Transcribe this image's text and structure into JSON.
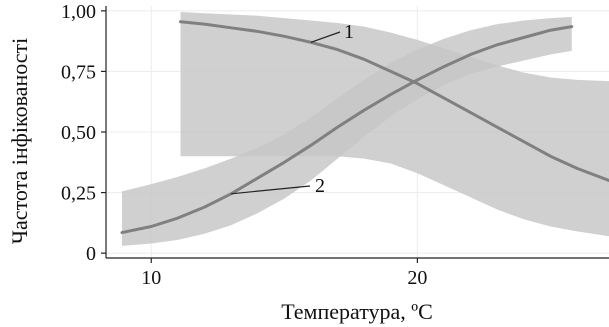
{
  "chart_data": {
    "type": "line",
    "xlabel": "Температура, ºС",
    "ylabel": "Частота інфікованості",
    "xlim": [
      8.3,
      27.2
    ],
    "ylim": [
      -0.02,
      1.02
    ],
    "x_ticks": [
      {
        "value": 10,
        "label": "10"
      },
      {
        "value": 20,
        "label": "20"
      }
    ],
    "y_ticks": [
      {
        "value": 0,
        "label": "0"
      },
      {
        "value": 0.25,
        "label": "0,25"
      },
      {
        "value": 0.5,
        "label": "0,50"
      },
      {
        "value": 0.75,
        "label": "0,75"
      },
      {
        "value": 1.0,
        "label": "1,00"
      }
    ],
    "grid": true,
    "legend": "none",
    "series": [
      {
        "label": "1",
        "x": [
          11.1,
          12,
          13,
          14,
          15,
          16,
          17,
          18,
          19,
          20,
          21,
          22,
          23,
          24,
          25,
          26,
          27.2
        ],
        "y": [
          0.955,
          0.945,
          0.93,
          0.915,
          0.895,
          0.87,
          0.84,
          0.8,
          0.75,
          0.7,
          0.64,
          0.58,
          0.52,
          0.46,
          0.4,
          0.35,
          0.3
        ],
        "lower": [
          0.4,
          0.4,
          0.4,
          0.4,
          0.4,
          0.4,
          0.4,
          0.39,
          0.37,
          0.33,
          0.28,
          0.23,
          0.18,
          0.14,
          0.11,
          0.09,
          0.07
        ],
        "upper": [
          0.995,
          0.99,
          0.985,
          0.98,
          0.97,
          0.96,
          0.95,
          0.935,
          0.91,
          0.88,
          0.845,
          0.81,
          0.775,
          0.745,
          0.725,
          0.715,
          0.71
        ]
      },
      {
        "label": "2",
        "x": [
          8.9,
          10,
          11,
          12,
          13,
          14,
          15,
          16,
          17,
          18,
          19,
          20,
          21,
          22,
          23,
          24,
          25,
          25.8
        ],
        "y": [
          0.085,
          0.11,
          0.145,
          0.19,
          0.245,
          0.31,
          0.375,
          0.445,
          0.52,
          0.59,
          0.655,
          0.715,
          0.77,
          0.82,
          0.86,
          0.89,
          0.92,
          0.935
        ],
        "lower": [
          0.03,
          0.04,
          0.055,
          0.08,
          0.115,
          0.165,
          0.225,
          0.3,
          0.39,
          0.48,
          0.565,
          0.635,
          0.695,
          0.74,
          0.77,
          0.795,
          0.82,
          0.835
        ],
        "upper": [
          0.255,
          0.285,
          0.315,
          0.35,
          0.39,
          0.435,
          0.49,
          0.56,
          0.64,
          0.715,
          0.785,
          0.84,
          0.885,
          0.92,
          0.945,
          0.96,
          0.97,
          0.975
        ]
      }
    ],
    "colors": {
      "line": "#808080",
      "band": "#c6c6c6",
      "grid": "#ececec",
      "axis": "#222222",
      "text": "#111111"
    }
  }
}
